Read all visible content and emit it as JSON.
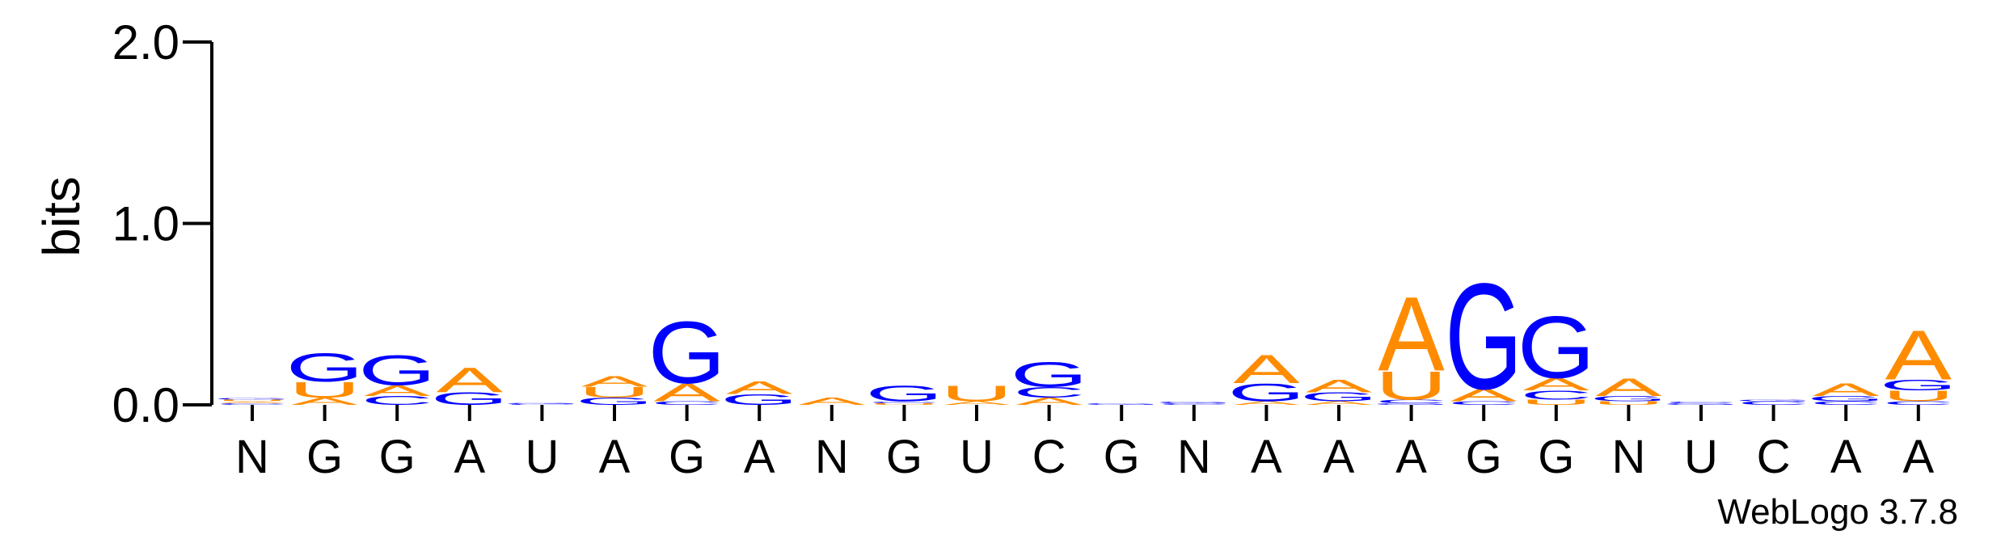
{
  "chart_data": {
    "type": "sequence-logo",
    "title": "",
    "xlabel": "",
    "ylabel": "bits",
    "ylim": [
      0,
      2.0
    ],
    "yticks": [
      {
        "value": 0.0,
        "label": "0.0"
      },
      {
        "value": 1.0,
        "label": "1.0"
      },
      {
        "value": 2.0,
        "label": "2.0"
      }
    ],
    "positions": [
      "N",
      "G",
      "G",
      "A",
      "U",
      "A",
      "G",
      "A",
      "N",
      "G",
      "U",
      "C",
      "G",
      "N",
      "A",
      "A",
      "A",
      "G",
      "G",
      "N",
      "U",
      "C",
      "A",
      "A"
    ],
    "colors": {
      "A": "#ff8c00",
      "U": "#ff8c00",
      "G": "#0000ff",
      "C": "#0000ff"
    },
    "stacks": [
      [
        {
          "l": "C",
          "v": 0.01
        },
        {
          "l": "A",
          "v": 0.01
        },
        {
          "l": "U",
          "v": 0.01
        },
        {
          "l": "G",
          "v": 0.01
        }
      ],
      [
        {
          "l": "A",
          "v": 0.04
        },
        {
          "l": "U",
          "v": 0.09
        },
        {
          "l": "G",
          "v": 0.16
        }
      ],
      [
        {
          "l": "C",
          "v": 0.05
        },
        {
          "l": "A",
          "v": 0.06
        },
        {
          "l": "G",
          "v": 0.17
        }
      ],
      [
        {
          "l": "G",
          "v": 0.07
        },
        {
          "l": "A",
          "v": 0.14
        }
      ],
      [
        {
          "l": "C",
          "v": 0.005
        },
        {
          "l": "G",
          "v": 0.005
        }
      ],
      [
        {
          "l": "G",
          "v": 0.04
        },
        {
          "l": "U",
          "v": 0.06
        },
        {
          "l": "A",
          "v": 0.06
        }
      ],
      [
        {
          "l": "C",
          "v": 0.02
        },
        {
          "l": "A",
          "v": 0.1
        },
        {
          "l": "G",
          "v": 0.35
        }
      ],
      [
        {
          "l": "G",
          "v": 0.06
        },
        {
          "l": "A",
          "v": 0.07
        }
      ],
      [
        {
          "l": "A",
          "v": 0.04
        }
      ],
      [
        {
          "l": "U",
          "v": 0.01
        },
        {
          "l": "C",
          "v": 0.01
        },
        {
          "l": "G",
          "v": 0.09
        }
      ],
      [
        {
          "l": "A",
          "v": 0.02
        },
        {
          "l": "U",
          "v": 0.09
        }
      ],
      [
        {
          "l": "A",
          "v": 0.04
        },
        {
          "l": "C",
          "v": 0.06
        },
        {
          "l": "G",
          "v": 0.14
        }
      ],
      [
        {
          "l": "G",
          "v": 0.01
        }
      ],
      [
        {
          "l": "C",
          "v": 0.01
        },
        {
          "l": "G",
          "v": 0.01
        }
      ],
      [
        {
          "l": "A",
          "v": 0.02
        },
        {
          "l": "G",
          "v": 0.1
        },
        {
          "l": "A",
          "v": 0.16
        }
      ],
      [
        {
          "l": "A",
          "v": 0.02
        },
        {
          "l": "G",
          "v": 0.05
        },
        {
          "l": "A",
          "v": 0.07
        }
      ],
      [
        {
          "l": "G",
          "v": 0.01
        },
        {
          "l": "C",
          "v": 0.02
        },
        {
          "l": "U",
          "v": 0.16
        },
        {
          "l": "A",
          "v": 0.42
        }
      ],
      [
        {
          "l": "C",
          "v": 0.02
        },
        {
          "l": "A",
          "v": 0.07
        },
        {
          "l": "G",
          "v": 0.6
        }
      ],
      [
        {
          "l": "U",
          "v": 0.03
        },
        {
          "l": "C",
          "v": 0.05
        },
        {
          "l": "A",
          "v": 0.07
        },
        {
          "l": "G",
          "v": 0.35
        }
      ],
      [
        {
          "l": "U",
          "v": 0.02
        },
        {
          "l": "G",
          "v": 0.03
        },
        {
          "l": "A",
          "v": 0.1
        }
      ],
      [
        {
          "l": "G",
          "v": 0.01
        },
        {
          "l": "C",
          "v": 0.01
        }
      ],
      [
        {
          "l": "C",
          "v": 0.02
        },
        {
          "l": "G",
          "v": 0.01
        }
      ],
      [
        {
          "l": "C",
          "v": 0.02
        },
        {
          "l": "G",
          "v": 0.03
        },
        {
          "l": "A",
          "v": 0.07
        }
      ],
      [
        {
          "l": "C",
          "v": 0.02
        },
        {
          "l": "U",
          "v": 0.06
        },
        {
          "l": "G",
          "v": 0.06
        },
        {
          "l": "A",
          "v": 0.28
        }
      ]
    ],
    "credit": "WebLogo 3.7.8"
  }
}
